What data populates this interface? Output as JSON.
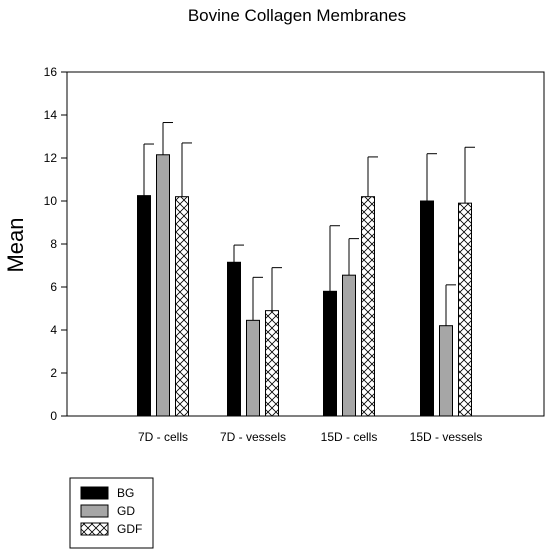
{
  "chart_data": {
    "type": "bar",
    "title": "Bovine Collagen Membranes",
    "xlabel": "",
    "ylabel": "Mean",
    "ylim": [
      0,
      16
    ],
    "yticks": [
      0,
      2,
      4,
      6,
      8,
      10,
      12,
      14,
      16
    ],
    "categories": [
      "7D - cells",
      "7D - vessels",
      "15D - cells",
      "15D - vessels"
    ],
    "series": [
      {
        "name": "BG",
        "values": [
          10.25,
          7.15,
          5.8,
          10.0
        ],
        "errors": [
          2.4,
          0.8,
          3.05,
          2.2
        ],
        "fill": "#000000",
        "pattern": "solid"
      },
      {
        "name": "GD",
        "values": [
          12.15,
          4.45,
          6.55,
          4.2
        ],
        "errors": [
          1.5,
          2.0,
          1.7,
          1.9
        ],
        "fill": "#a6a6a6",
        "pattern": "solid"
      },
      {
        "name": "GDF",
        "values": [
          10.2,
          4.9,
          10.2,
          9.9
        ],
        "errors": [
          2.5,
          2.0,
          1.85,
          2.6
        ],
        "fill": "#ffffff",
        "pattern": "crosshatch"
      }
    ],
    "legend_position": "bottom-left",
    "grid": false
  }
}
